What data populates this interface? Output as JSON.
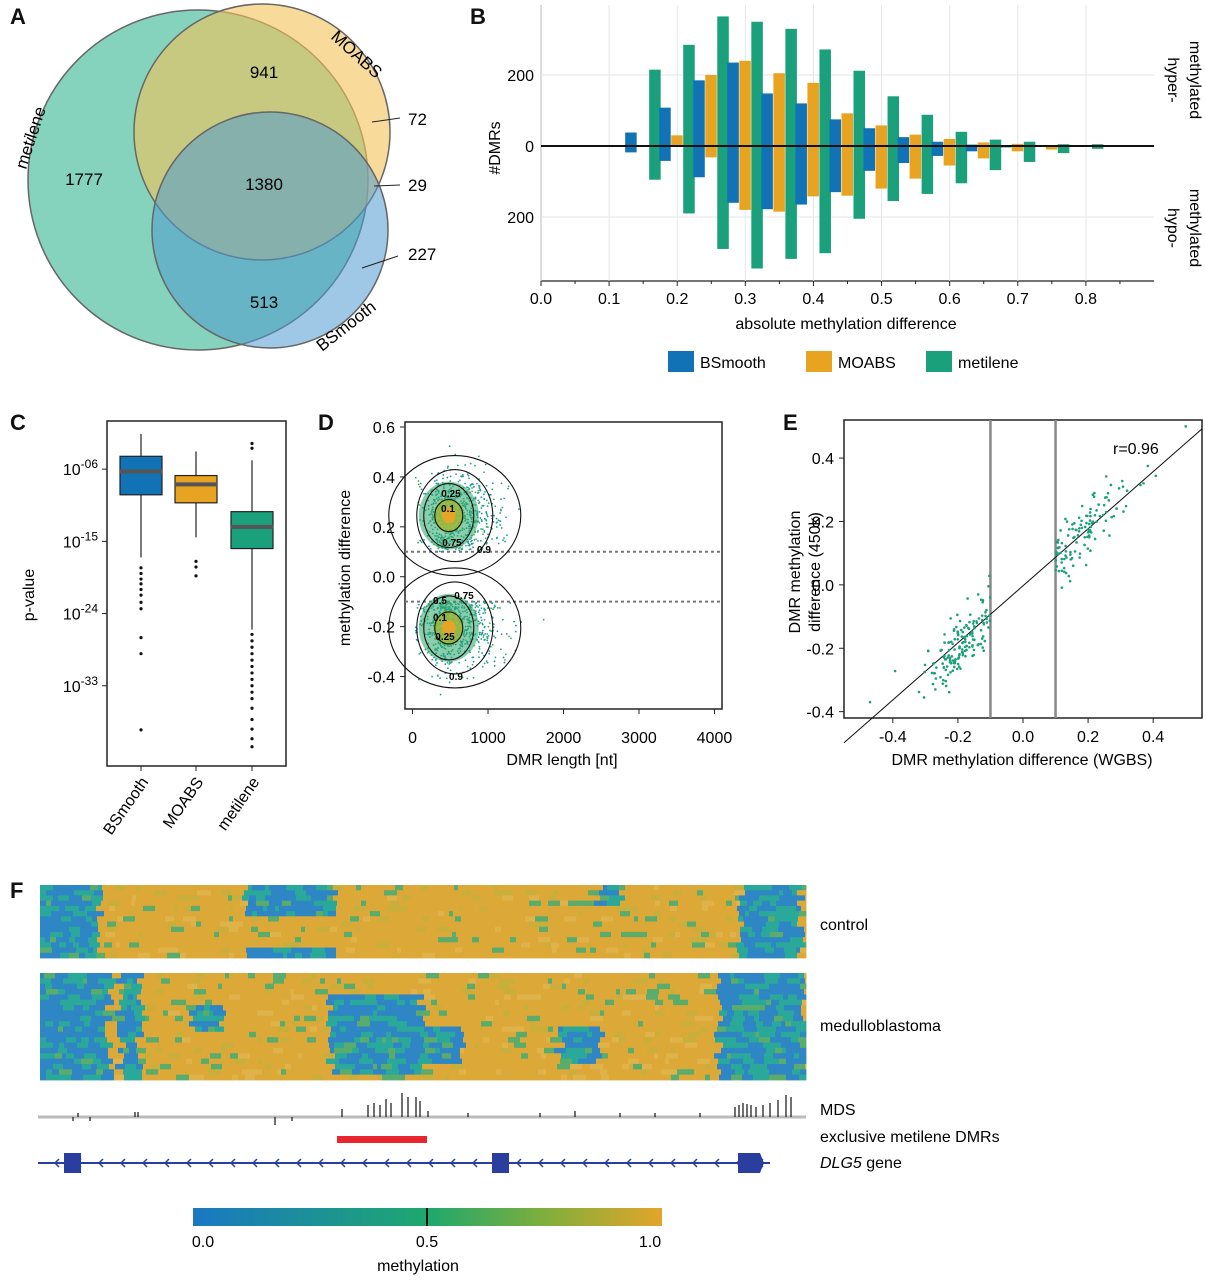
{
  "panels": {
    "A": "A",
    "B": "B",
    "C": "C",
    "D": "D",
    "E": "E",
    "F": "F"
  },
  "colors": {
    "bsmooth": "#1172b6",
    "moabs": "#e8a420",
    "metilene": "#1aa07a",
    "venn_metilene": "#5cc4a6",
    "venn_moabs": "#f3c358",
    "venn_bsmooth": "#4f9bd0"
  },
  "chart_data": [
    {
      "id": "A",
      "type": "venn",
      "sets": [
        "metilene",
        "MOABS",
        "BSmooth"
      ],
      "set_label_parts": {
        "metilene_prefix": "met",
        "metilene_italic": "i",
        "metilene_suffix": "lene"
      },
      "regions": {
        "metilene_only": 1777,
        "moabs_only": 72,
        "bsmooth_only": 227,
        "metilene_moabs": 941,
        "metilene_bsmooth": 513,
        "moabs_bsmooth": 29,
        "all": 1380
      }
    },
    {
      "id": "B",
      "type": "bar",
      "categories": [
        0.15,
        0.2,
        0.25,
        0.3,
        0.35,
        0.4,
        0.45,
        0.5,
        0.55,
        0.6,
        0.65,
        0.7,
        0.75,
        0.8
      ],
      "series": [
        {
          "name": "BSmooth",
          "hyper": [
            38,
            108,
            185,
            235,
            148,
            120,
            75,
            50,
            25,
            12,
            4,
            2,
            0,
            0
          ],
          "hypo": [
            18,
            42,
            88,
            160,
            178,
            165,
            130,
            70,
            48,
            28,
            15,
            4,
            2,
            0
          ]
        },
        {
          "name": "MOABS",
          "hyper": [
            0,
            30,
            200,
            240,
            205,
            178,
            92,
            58,
            32,
            20,
            10,
            6,
            0,
            0
          ],
          "hypo": [
            0,
            0,
            32,
            180,
            185,
            142,
            140,
            120,
            92,
            55,
            35,
            15,
            10,
            0
          ]
        },
        {
          "name": "metilene",
          "hyper": [
            215,
            285,
            365,
            350,
            330,
            272,
            212,
            140,
            88,
            40,
            18,
            12,
            5,
            5
          ],
          "hypo": [
            95,
            190,
            290,
            345,
            318,
            302,
            205,
            155,
            135,
            105,
            68,
            45,
            20,
            8
          ]
        }
      ],
      "title": "",
      "xlabel": "absolute methylation difference",
      "ylabel": "#DMRs",
      "xlim": [
        0,
        0.9
      ],
      "xticks": [
        "0.0",
        "0.1",
        "0.2",
        "0.3",
        "0.4",
        "0.5",
        "0.6",
        "0.7",
        "0.8"
      ],
      "yticks_hyper": [
        "200",
        "0"
      ],
      "yticks_hypo": [
        "200"
      ],
      "right_labels": {
        "hyper": [
          "hyper-",
          "methylated"
        ],
        "hypo": [
          "hypo-",
          "methylated"
        ]
      },
      "legend": [
        "BSmooth",
        "MOABS",
        "metilene"
      ]
    },
    {
      "id": "C",
      "type": "box",
      "ylabel": "p-value",
      "log_scale": true,
      "yticks": [
        {
          "base": "10",
          "exp": "-06",
          "value": -6
        },
        {
          "base": "10",
          "exp": "-15",
          "value": -15
        },
        {
          "base": "10",
          "exp": "-24",
          "value": -24
        },
        {
          "base": "10",
          "exp": "-33",
          "value": -33
        }
      ],
      "ylim": [
        -43,
        0
      ],
      "boxes": [
        {
          "name": "BSmooth",
          "whisker_lo": -17,
          "q1": -9.2,
          "median": -6.3,
          "q3": -4.4,
          "whisker_hi": -1.6,
          "outliers": [
            -18.3,
            -19,
            -19.7,
            -20.3,
            -21,
            -21.7,
            -22.6,
            -23.4,
            -27,
            -29,
            -38.5
          ]
        },
        {
          "name": "MOABS",
          "whisker_lo": -14.5,
          "q1-": -10,
          "q1": -10.2,
          "median": -7.9,
          "q3": -6.8,
          "whisker_hi": -3.8,
          "outliers": [
            -17.5,
            -18.2,
            -19.3
          ]
        },
        {
          "name": "metilene",
          "whisker_lo": -26,
          "q1": -15.9,
          "median": -13.2,
          "q3": -11.3,
          "whisker_hi": -4.9,
          "outliers": [
            -2.8,
            -3.4,
            -26.6,
            -27.4,
            -28.2,
            -29,
            -29.8,
            -30.6,
            -31.4,
            -32.2,
            -33,
            -33.8,
            -34.6,
            -35.8,
            -37.2,
            -38.4,
            -39.6,
            -40.6
          ]
        }
      ]
    },
    {
      "id": "D",
      "type": "scatter",
      "xlabel": "DMR length [nt]",
      "ylabel": "methylation difference",
      "xlim": [
        -100,
        4100
      ],
      "ylim": [
        -0.53,
        0.62
      ],
      "xticks": [
        "0",
        "1000",
        "2000",
        "3000",
        "4000"
      ],
      "yticks": [
        "0.6",
        "0.4",
        "0.2",
        "0.0",
        "-0.2",
        "-0.4"
      ],
      "thresholds": [
        0.1,
        -0.1
      ],
      "clusters": [
        {
          "cx": 520,
          "cy": 0.245,
          "sx": 260,
          "sy": 0.085,
          "n": 700
        },
        {
          "cx": 520,
          "cy": -0.205,
          "sx": 270,
          "sy": 0.085,
          "n": 700
        }
      ],
      "contour_labels": {
        "hyper": [
          "0.25",
          "0.1",
          "0.75",
          "0.9"
        ],
        "hypo": [
          "0.75",
          "0.5",
          "0.1",
          "0.25",
          "0.9"
        ]
      }
    },
    {
      "id": "E",
      "type": "scatter",
      "xlabel": "DMR methylation difference (WGBS)",
      "ylabel": [
        "DMR methylation",
        "difference (450k)"
      ],
      "xlim": [
        -0.55,
        0.55
      ],
      "ylim": [
        -0.42,
        0.52
      ],
      "xticks": [
        "-0.4",
        "-0.2",
        "0.0",
        "0.2",
        "0.4"
      ],
      "yticks": [
        "0.4",
        "0.2",
        "0.0",
        "-0.2",
        "-0.4"
      ],
      "vlines": [
        -0.1,
        0.1
      ],
      "fit": {
        "slope": 0.9,
        "intercept": -0.003
      },
      "annotation": "r=0.96",
      "clusters": [
        {
          "cx": -0.19,
          "cy": -0.17,
          "sx": 0.06,
          "sy": 0.055,
          "n": 160
        },
        {
          "cx": 0.2,
          "cy": 0.17,
          "sx": 0.07,
          "sy": 0.06,
          "n": 120
        }
      ]
    },
    {
      "id": "F",
      "type": "heatmap",
      "groups": [
        "control",
        "medulloblastoma"
      ],
      "tracks": {
        "mds": "MDS",
        "dmr": "exclusive metilene DMRs",
        "gene_name": "DLG5",
        "gene_suffix": " gene"
      },
      "colorbar": {
        "label": "methylation",
        "ticks": [
          "0.0",
          "0.5",
          "1.0"
        ],
        "range": [
          0,
          1
        ]
      }
    }
  ]
}
